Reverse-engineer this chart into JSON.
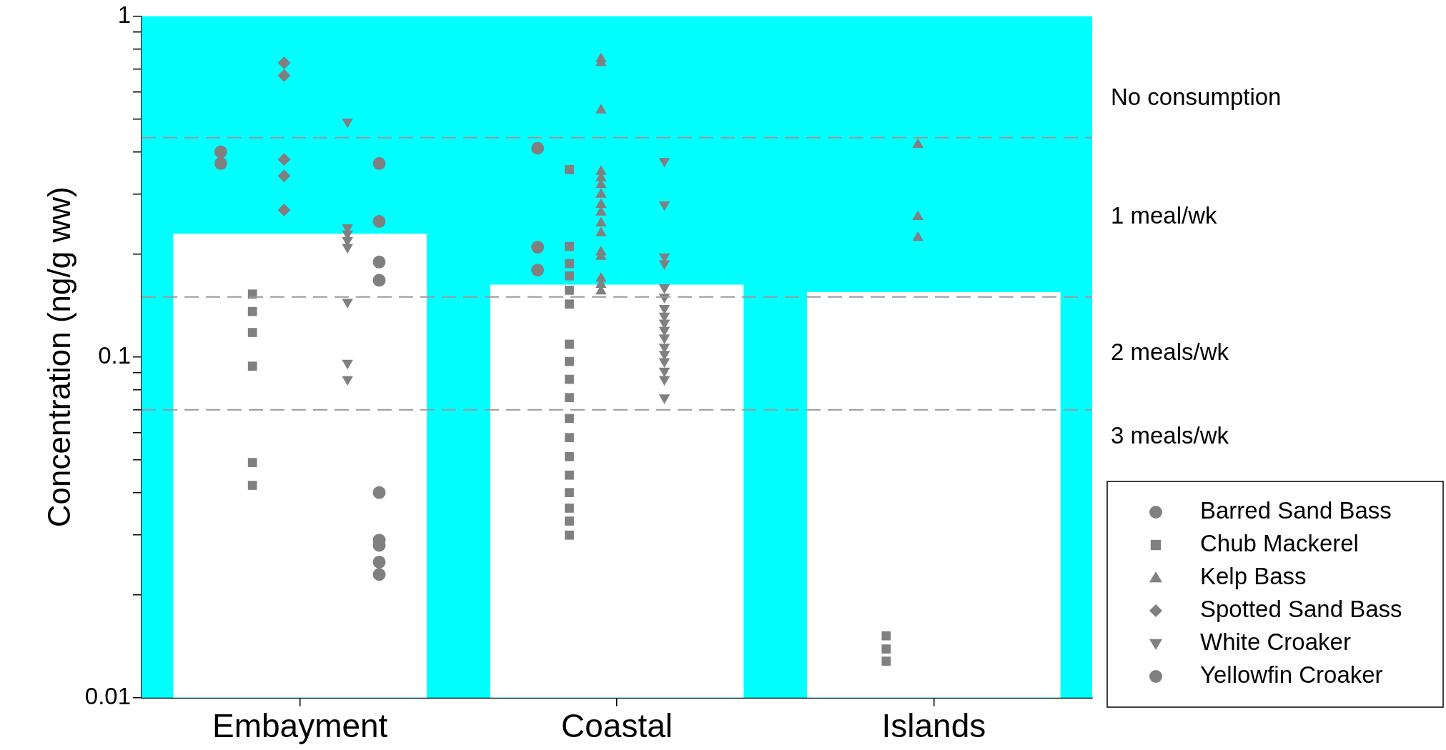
{
  "chart_data": {
    "type": "bar",
    "ylabel": "Concentration (ng/g ww)",
    "categories": [
      "Embayment",
      "Coastal",
      "Islands"
    ],
    "log": "y",
    "ylim": [
      0.01,
      1
    ],
    "yticks": [
      0.01,
      {
        "value": 0.02,
        "label": null
      },
      {
        "value": 0.03,
        "label": null
      },
      {
        "value": 0.04,
        "label": null
      },
      {
        "value": 0.05,
        "label": null
      },
      {
        "value": 0.06,
        "label": null
      },
      {
        "value": 0.07,
        "label": null
      },
      {
        "value": 0.08,
        "label": null
      },
      {
        "value": 0.09,
        "label": null
      },
      0.1,
      {
        "value": 0.2,
        "label": null
      },
      {
        "value": 0.3,
        "label": null
      },
      {
        "value": 0.4,
        "label": null
      },
      {
        "value": 0.5,
        "label": null
      },
      {
        "value": 0.6,
        "label": null
      },
      {
        "value": 0.7,
        "label": null
      },
      {
        "value": 0.8,
        "label": null
      },
      {
        "value": 0.9,
        "label": null
      },
      1
    ],
    "grid": false,
    "legend": "right",
    "series": [
      {
        "color": "#ffffff",
        "values": [
          0.23,
          0.163,
          0.155
        ]
      },
      {
        "type": "scatter",
        "name": "Barred Sand Bass",
        "color": "#808080",
        "marker": "circle",
        "x": [
          "Embayment",
          "Embayment",
          "Coastal",
          "Coastal",
          "Coastal"
        ],
        "values": [
          0.4,
          0.37,
          0.41,
          0.21,
          0.18
        ]
      },
      {
        "type": "scatter",
        "name": "Chub Mackerel",
        "color": "#808080",
        "marker": "square",
        "x": [
          "Embayment",
          "Embayment",
          "Embayment",
          "Embayment",
          "Embayment",
          "Embayment",
          "Coastal",
          "Coastal",
          "Coastal",
          "Coastal",
          "Coastal",
          "Coastal",
          "Coastal",
          "Coastal",
          "Coastal",
          "Coastal",
          "Coastal",
          "Coastal",
          "Coastal",
          "Coastal",
          "Coastal",
          "Coastal",
          "Coastal",
          "Coastal",
          "Islands",
          "Islands",
          "Islands"
        ],
        "values": [
          0.153,
          0.136,
          0.118,
          0.094,
          0.049,
          0.042,
          0.355,
          0.211,
          0.188,
          0.173,
          0.157,
          0.143,
          0.109,
          0.097,
          0.086,
          0.076,
          0.066,
          0.058,
          0.051,
          0.045,
          0.04,
          0.036,
          0.033,
          0.03,
          0.0152,
          0.0139,
          0.0128
        ]
      },
      {
        "type": "scatter",
        "name": "Kelp Bass",
        "color": "#808080",
        "marker": "triangle",
        "x": [
          "Coastal",
          "Coastal",
          "Coastal",
          "Coastal",
          "Coastal",
          "Coastal",
          "Coastal",
          "Coastal",
          "Coastal",
          "Coastal",
          "Coastal",
          "Coastal",
          "Coastal",
          "Coastal",
          "Coastal",
          "Coastal",
          "Islands",
          "Islands",
          "Islands"
        ],
        "values": [
          0.75,
          0.73,
          0.53,
          0.35,
          0.335,
          0.32,
          0.3,
          0.28,
          0.266,
          0.247,
          0.231,
          0.203,
          0.197,
          0.17,
          0.163,
          0.156,
          0.42,
          0.258,
          0.224
        ]
      },
      {
        "type": "scatter",
        "name": "Spotted Sand Bass",
        "color": "#808080",
        "marker": "diamond",
        "x": [
          "Embayment",
          "Embayment",
          "Embayment",
          "Embayment",
          "Embayment"
        ],
        "values": [
          0.73,
          0.67,
          0.38,
          0.34,
          0.27
        ]
      },
      {
        "type": "scatter",
        "name": "White Croaker",
        "color": "#808080",
        "marker": "triangle-down",
        "x": [
          "Embayment",
          "Embayment",
          "Embayment",
          "Embayment",
          "Embayment",
          "Embayment",
          "Embayment",
          "Embayment",
          "Coastal",
          "Coastal",
          "Coastal",
          "Coastal",
          "Coastal",
          "Coastal",
          "Coastal",
          "Coastal",
          "Coastal",
          "Coastal",
          "Coastal",
          "Coastal",
          "Coastal",
          "Coastal",
          "Coastal",
          "Coastal",
          "Coastal"
        ],
        "values": [
          0.49,
          0.24,
          0.23,
          0.22,
          0.21,
          0.145,
          0.096,
          0.086,
          0.376,
          0.28,
          0.197,
          0.188,
          0.16,
          0.15,
          0.139,
          0.132,
          0.126,
          0.12,
          0.114,
          0.107,
          0.102,
          0.097,
          0.091,
          0.086,
          0.076
        ]
      },
      {
        "type": "scatter",
        "name": "Yellowfin Croaker",
        "color": "#808080",
        "marker": "circle",
        "x": [
          "Embayment",
          "Embayment",
          "Embayment",
          "Embayment",
          "Embayment",
          "Embayment",
          "Embayment",
          "Embayment",
          "Embayment"
        ],
        "values": [
          0.37,
          0.25,
          0.19,
          0.168,
          0.04,
          0.029,
          0.028,
          0.025,
          0.023
        ]
      }
    ],
    "ref_lines": [
      {
        "axis": "y",
        "value": 0.44,
        "color": "#999999",
        "line_style": "dashed"
      },
      {
        "axis": "y",
        "value": 0.15,
        "color": "#999999",
        "line_style": "dashed"
      },
      {
        "axis": "y",
        "value": 0.07,
        "color": "#999999",
        "line_style": "dashed"
      }
    ],
    "bands": [
      {
        "axis": "y",
        "from": 0.01,
        "to": 1,
        "color": "#00ffff"
      }
    ],
    "annotations": [
      "No consumption",
      "1 meal/wk",
      "2 meals/wk",
      "3 meals/wk"
    ]
  }
}
